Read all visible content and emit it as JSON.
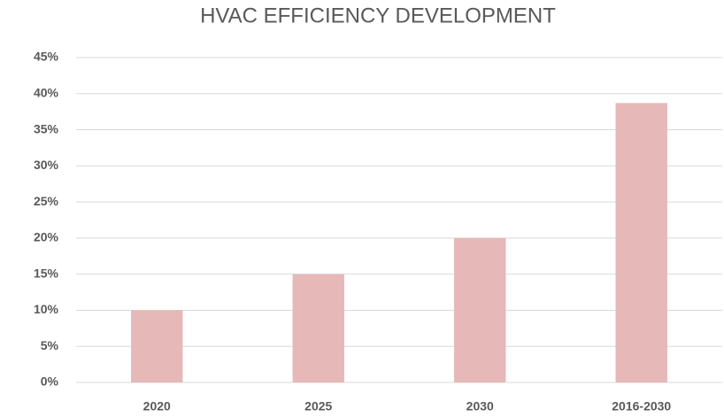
{
  "chart_data": {
    "type": "bar",
    "title": "HVAC EFFICIENCY DEVELOPMENT",
    "categories": [
      "2020",
      "2025",
      "2030",
      "2016-2030"
    ],
    "values": [
      10,
      15,
      20,
      38.7
    ],
    "color": "#e6b8b7",
    "ylim": [
      0,
      45
    ],
    "yticks": [
      {
        "value": 0,
        "label": "0%"
      },
      {
        "value": 5,
        "label": "5%"
      },
      {
        "value": 10,
        "label": "10%"
      },
      {
        "value": 15,
        "label": "15%"
      },
      {
        "value": 20,
        "label": "20%"
      },
      {
        "value": 25,
        "label": "25%"
      },
      {
        "value": 30,
        "label": "30%"
      },
      {
        "value": 35,
        "label": "35%"
      },
      {
        "value": 40,
        "label": "40%"
      },
      {
        "value": 45,
        "label": "45%"
      }
    ],
    "grid": true
  }
}
